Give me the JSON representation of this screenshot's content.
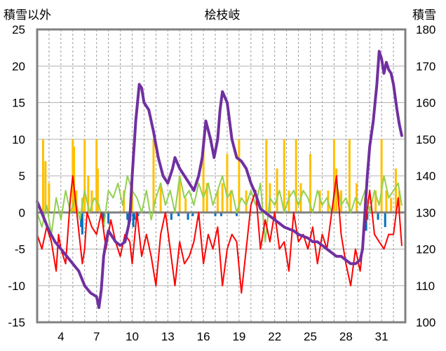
{
  "chart_data": {
    "type": "line",
    "title": "桧枝岐",
    "ylabel_left": "積雪以外",
    "ylabel_right": "積雪",
    "x_ticks": [
      "4",
      "7",
      "10",
      "13",
      "16",
      "19",
      "22",
      "25",
      "28",
      "31"
    ],
    "xlim": [
      2,
      33
    ],
    "ylim_left": [
      -15,
      25
    ],
    "ylim_right": [
      100,
      180
    ],
    "left_ticks": [
      "25",
      "20",
      "15",
      "10",
      "5",
      "0",
      "-5",
      "-10",
      "-15"
    ],
    "right_ticks": [
      "180",
      "170",
      "160",
      "150",
      "140",
      "130",
      "120",
      "110",
      "100"
    ],
    "grid": true,
    "colors": {
      "temperature": "#ff0000",
      "wind": "#92d050",
      "precipitation": "#ffc000",
      "snow_change": "#0070c0",
      "snow_depth": "#7030a0",
      "frame": "#808080"
    },
    "series": [
      {
        "key": "temperature",
        "axis": "left",
        "x": [
          2.0,
          2.4,
          2.8,
          3.2,
          3.6,
          3.8,
          4.0,
          4.4,
          4.8,
          5.0,
          5.3,
          5.6,
          5.8,
          6.0,
          6.2,
          6.6,
          7.0,
          7.4,
          7.8,
          8.2,
          8.6,
          9.0,
          9.4,
          9.8,
          10.0,
          10.4,
          10.8,
          11.2,
          11.6,
          12.0,
          12.4,
          12.8,
          13.2,
          13.6,
          14.0,
          14.4,
          14.8,
          15.2,
          15.6,
          16.0,
          16.4,
          16.8,
          17.2,
          17.6,
          18.0,
          18.4,
          18.8,
          19.2,
          19.6,
          20.0,
          20.4,
          20.8,
          21.2,
          21.6,
          22.0,
          22.4,
          22.8,
          23.2,
          23.6,
          24.0,
          24.4,
          24.8,
          25.2,
          25.6,
          26.0,
          26.4,
          26.8,
          27.2,
          27.6,
          28.0,
          28.4,
          28.8,
          29.2,
          29.6,
          30.0,
          30.4,
          30.8,
          31.2,
          31.6,
          32.0,
          32.4,
          32.7
        ],
        "values": [
          -3.0,
          -5.0,
          -2.0,
          -4.0,
          -8.0,
          -3.0,
          -5.0,
          -7.0,
          2.0,
          5.0,
          0.5,
          -4.0,
          -7.0,
          -5.0,
          0.0,
          -2.0,
          -3.0,
          0.0,
          -5.0,
          -1.0,
          -4.0,
          -6.0,
          -3.0,
          -4.0,
          -7.0,
          0.0,
          -6.0,
          -3.0,
          -6.0,
          -10.0,
          -3.0,
          0.0,
          -5.0,
          -10.0,
          -4.0,
          -7.0,
          -6.0,
          -4.0,
          0.0,
          -7.0,
          -3.0,
          -5.0,
          -2.0,
          -10.0,
          -5.0,
          -3.0,
          -4.0,
          -11.0,
          -5.0,
          1.0,
          3.0,
          -5.0,
          -1.0,
          -4.0,
          0.0,
          -5.0,
          -4.0,
          -8.0,
          0.0,
          -4.0,
          -3.0,
          -5.0,
          -2.0,
          -7.0,
          -3.0,
          -5.0,
          0.0,
          5.0,
          -3.0,
          -7.0,
          -10.0,
          -5.0,
          -8.0,
          -2.0,
          3.0,
          -3.0,
          -4.0,
          -5.0,
          -3.0,
          -3.0,
          2.0,
          -4.5
        ]
      },
      {
        "key": "wind",
        "axis": "left",
        "x": [
          2.0,
          2.4,
          2.8,
          3.2,
          3.6,
          4.0,
          4.4,
          4.8,
          5.2,
          5.6,
          6.0,
          6.4,
          6.8,
          7.2,
          7.6,
          8.0,
          8.4,
          8.8,
          9.2,
          9.6,
          10.0,
          10.4,
          10.8,
          11.2,
          11.6,
          12.0,
          12.4,
          12.8,
          13.2,
          13.6,
          14.0,
          14.4,
          14.8,
          15.2,
          15.6,
          16.0,
          16.4,
          16.8,
          17.2,
          17.6,
          18.0,
          18.4,
          18.8,
          19.2,
          19.6,
          20.0,
          20.4,
          20.8,
          21.2,
          21.6,
          22.0,
          22.4,
          22.8,
          23.2,
          23.6,
          24.0,
          24.4,
          24.8,
          25.2,
          25.6,
          26.0,
          26.4,
          26.8,
          27.2,
          27.6,
          28.0,
          28.4,
          28.8,
          29.2,
          29.6,
          30.0,
          30.4,
          30.8,
          31.2,
          31.6,
          32.0,
          32.4,
          32.7
        ],
        "values": [
          0.0,
          -2.0,
          1.0,
          -3.0,
          2.0,
          -1.0,
          3.0,
          0.0,
          2.0,
          -1.0,
          3.0,
          0.0,
          2.0,
          1.0,
          -2.0,
          3.0,
          2.0,
          4.0,
          1.0,
          5.0,
          3.0,
          2.0,
          0.0,
          3.0,
          -1.0,
          2.0,
          4.0,
          1.0,
          3.0,
          0.0,
          5.0,
          2.0,
          3.0,
          1.0,
          4.0,
          2.0,
          4.0,
          1.0,
          3.0,
          5.0,
          2.0,
          3.0,
          0.0,
          2.0,
          1.0,
          3.0,
          1.0,
          4.0,
          -4.0,
          2.0,
          1.0,
          3.0,
          0.0,
          2.0,
          3.0,
          1.0,
          3.0,
          2.0,
          0.0,
          3.0,
          1.0,
          2.0,
          0.0,
          4.0,
          1.0,
          2.0,
          0.0,
          2.0,
          1.0,
          3.0,
          0.0,
          3.0,
          1.0,
          5.0,
          2.0,
          3.0,
          4.0,
          1.0
        ]
      },
      {
        "key": "snow_depth",
        "axis": "right",
        "x": [
          2.0,
          2.5,
          3.0,
          3.5,
          4.0,
          4.5,
          5.0,
          5.5,
          6.0,
          6.5,
          7.0,
          7.2,
          7.4,
          7.6,
          7.8,
          8.0,
          8.2,
          8.6,
          9.0,
          9.4,
          9.8,
          10.0,
          10.3,
          10.6,
          10.8,
          11.0,
          11.4,
          11.8,
          12.2,
          12.6,
          13.0,
          13.4,
          13.6,
          14.0,
          14.4,
          14.8,
          15.2,
          15.6,
          15.9,
          16.2,
          16.6,
          16.9,
          17.2,
          17.4,
          17.6,
          18.0,
          18.4,
          18.8,
          19.2,
          19.6,
          20.0,
          20.4,
          20.8,
          21.2,
          21.6,
          22.0,
          22.4,
          22.8,
          23.2,
          23.6,
          24.0,
          24.4,
          24.8,
          25.2,
          25.6,
          26.0,
          26.4,
          26.8,
          27.2,
          27.6,
          28.0,
          28.4,
          28.8,
          29.2,
          29.4,
          29.6,
          29.8,
          30.0,
          30.3,
          30.6,
          30.8,
          31.0,
          31.2,
          31.4,
          31.6,
          31.8,
          32.0,
          32.3,
          32.5,
          32.7
        ],
        "values": [
          133.0,
          129.0,
          125.0,
          122.0,
          120.0,
          118.0,
          116.0,
          114.0,
          110.0,
          108.0,
          107.0,
          104.0,
          109.0,
          118.0,
          122.0,
          125.0,
          124.0,
          122.0,
          121.0,
          122.0,
          128.0,
          140.0,
          155.0,
          165.0,
          164.0,
          160.0,
          158.0,
          152.0,
          145.0,
          140.0,
          138.0,
          142.0,
          145.0,
          142.0,
          140.0,
          138.0,
          136.0,
          140.0,
          145.0,
          155.0,
          150.0,
          145.0,
          150.0,
          158.0,
          163.0,
          160.0,
          150.0,
          145.0,
          144.0,
          142.0,
          138.0,
          135.0,
          131.0,
          130.0,
          129.0,
          128.0,
          127.0,
          126.0,
          125.5,
          125.0,
          124.0,
          123.5,
          123.0,
          122.0,
          122.0,
          121.0,
          120.0,
          119.0,
          118.0,
          118.0,
          117.0,
          116.0,
          116.0,
          117.0,
          120.0,
          130.0,
          140.0,
          148.0,
          155.0,
          165.0,
          174.0,
          172.0,
          168.0,
          171.0,
          169.0,
          168.0,
          165.0,
          158.0,
          154.0,
          151.0
        ]
      },
      {
        "key": "precipitation",
        "axis": "left",
        "type": "bar",
        "x": [
          2.5,
          2.7,
          3.0,
          5.0,
          5.1,
          5.3,
          5.8,
          6.0,
          6.3,
          6.6,
          7.0,
          7.1,
          9.3,
          10.0,
          11.8,
          12.4,
          14.0,
          14.5,
          16.0,
          16.3,
          17.2,
          17.6,
          18.0,
          18.3,
          19.0,
          19.6,
          21.3,
          21.6,
          22.2,
          22.8,
          23.2,
          23.8,
          24.2,
          25.0,
          25.8,
          26.5,
          27.0,
          27.2,
          27.6,
          28.3,
          28.9,
          29.6,
          30.5,
          31.0,
          31.4,
          31.8,
          32.2,
          32.5
        ],
        "values": [
          10.0,
          7.0,
          4.0,
          10.0,
          9.0,
          3.0,
          2.0,
          10.0,
          5.0,
          3.0,
          10.0,
          6.0,
          3.0,
          6.0,
          10.0,
          4.0,
          5.0,
          2.0,
          10.0,
          4.0,
          3.0,
          4.0,
          8.0,
          3.0,
          10.0,
          3.0,
          10.0,
          4.0,
          6.0,
          10.0,
          3.0,
          10.0,
          4.0,
          8.0,
          3.0,
          3.0,
          10.0,
          6.0,
          3.0,
          10.0,
          4.0,
          2.0,
          3.0,
          10.0,
          3.0,
          2.0,
          6.0,
          3.0
        ]
      },
      {
        "key": "snow_change",
        "axis": "left",
        "type": "bar",
        "x": [
          5.7,
          5.8,
          7.5,
          7.6,
          8.0,
          9.6,
          9.7,
          10.1,
          10.2,
          10.5,
          13.3,
          13.9,
          14.7,
          15.1,
          15.6,
          17.0,
          17.5,
          18.8,
          29.7,
          29.8,
          30.7,
          31.3
        ],
        "values": [
          -2.0,
          -3.0,
          -1.0,
          -2.0,
          -1.5,
          -1.0,
          -1.5,
          -2.0,
          -1.0,
          -0.5,
          -1.0,
          -0.5,
          -1.0,
          -0.5,
          -1.0,
          -0.5,
          -0.5,
          -0.5,
          -2.5,
          -1.0,
          -1.0,
          -2.0
        ]
      }
    ]
  }
}
